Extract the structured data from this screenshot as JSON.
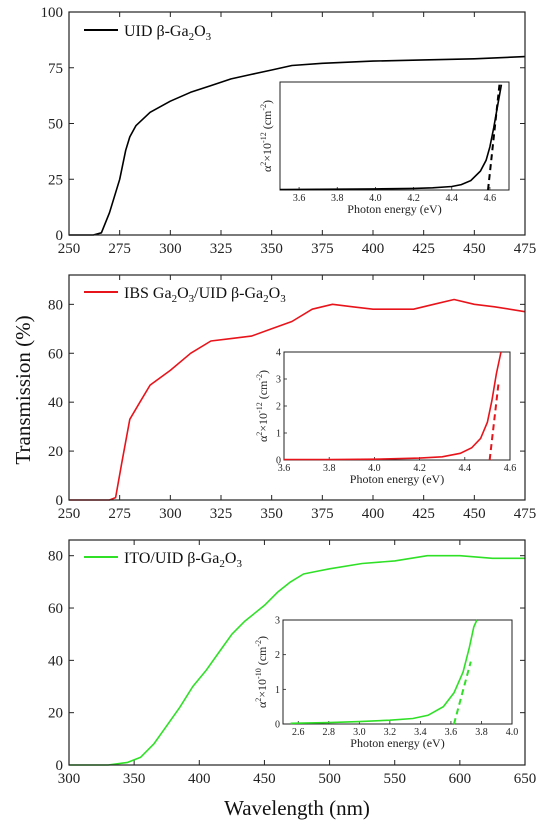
{
  "axis_titles": {
    "y": "Transmission (%)",
    "x": "Wavelength (nm)"
  },
  "chart_data": [
    {
      "type": "line",
      "series": [
        {
          "name": "UID β-Ga2O3",
          "color": "#000000",
          "x": [
            250,
            262,
            266,
            270,
            275,
            278,
            280,
            283,
            290,
            300,
            310,
            320,
            330,
            340,
            350,
            360,
            375,
            400,
            425,
            450,
            475
          ],
          "y": [
            0,
            0,
            1,
            10,
            25,
            38,
            44,
            49,
            55,
            60,
            64,
            67,
            70,
            72,
            74,
            76,
            77,
            78,
            78.5,
            79,
            80
          ]
        }
      ],
      "legend": {
        "main": "UID β-Ga",
        "sub": "2",
        "mid": "O",
        "sub2": "3"
      },
      "x_ticks": [
        250,
        275,
        300,
        325,
        350,
        375,
        400,
        425,
        450,
        475
      ],
      "y_ticks": [
        0,
        25,
        50,
        75,
        100
      ],
      "xlim": [
        250,
        475
      ],
      "ylim": [
        0,
        100
      ],
      "inset": {
        "type": "line",
        "x": [
          3.5,
          3.8,
          4.0,
          4.2,
          4.3,
          4.4,
          4.45,
          4.5,
          4.55,
          4.58,
          4.6,
          4.62,
          4.64,
          4.66
        ],
        "y": [
          0.02,
          0.03,
          0.04,
          0.06,
          0.08,
          0.13,
          0.2,
          0.35,
          0.7,
          1.1,
          1.6,
          2.3,
          3.1,
          3.9
        ],
        "fit": {
          "x": [
            4.59,
            4.65
          ],
          "y": [
            0,
            3.9
          ]
        },
        "xlabel": "Photon energy (eV)",
        "ylabel": {
          "a": "α",
          "s1": "2",
          "b": "×10",
          "s2": "-12",
          "c": " (cm",
          "s3": "-2",
          "d": ")"
        },
        "x_ticks": [
          "3.6",
          "3.8",
          "4.0",
          "4.2",
          "4.4",
          "4.6"
        ],
        "xlim": [
          3.5,
          4.7
        ],
        "ylim": [
          0,
          4
        ],
        "y_ticks": []
      }
    },
    {
      "type": "line",
      "series": [
        {
          "name": "IBS Ga2O3/UID β-Ga2O3",
          "color": "#e8141b",
          "x": [
            250,
            270,
            273,
            276,
            280,
            285,
            290,
            300,
            310,
            320,
            330,
            340,
            350,
            360,
            370,
            380,
            390,
            400,
            410,
            420,
            430,
            440,
            450,
            460,
            475
          ],
          "y": [
            0,
            0,
            1,
            15,
            33,
            40,
            47,
            53,
            60,
            65,
            66,
            67,
            70,
            73,
            78,
            80,
            79,
            78,
            78,
            78,
            80,
            82,
            80,
            79,
            77
          ]
        }
      ],
      "legend": {
        "main": "IBS Ga",
        "sub": "2",
        "mid": "O",
        "sub2": "3",
        "rest": "/UID β-Ga",
        "sub3": "2",
        "mid2": "O",
        "sub4": "3"
      },
      "x_ticks": [
        250,
        275,
        300,
        325,
        350,
        375,
        400,
        425,
        450,
        475
      ],
      "y_ticks": [
        0,
        20,
        40,
        60,
        80
      ],
      "xlim": [
        250,
        475
      ],
      "ylim": [
        0,
        92
      ],
      "inset": {
        "type": "line",
        "x": [
          3.6,
          3.8,
          4.0,
          4.2,
          4.3,
          4.38,
          4.43,
          4.47,
          4.5,
          4.52,
          4.54,
          4.56
        ],
        "y": [
          0.02,
          0.02,
          0.03,
          0.07,
          0.12,
          0.25,
          0.45,
          0.8,
          1.4,
          2.2,
          3.2,
          4.0
        ],
        "fit": {
          "x": [
            4.51,
            4.55
          ],
          "y": [
            0,
            2.9
          ]
        },
        "xlabel": "Photon energy (eV)",
        "ylabel": {
          "a": "α",
          "s1": "2",
          "b": "×10",
          "s2": "-12",
          "c": " (cm",
          "s3": "-2",
          "d": ")"
        },
        "x_ticks": [
          "3.6",
          "3.8",
          "4.0",
          "4.2",
          "4.4",
          "4.6"
        ],
        "xlim": [
          3.6,
          4.6
        ],
        "ylim": [
          0,
          4
        ],
        "y_ticks": [
          "0",
          "1",
          "2",
          "3",
          "4"
        ]
      }
    },
    {
      "type": "line",
      "series": [
        {
          "name": "ITO/UID β-Ga2O3",
          "color": "#2fe027",
          "x": [
            300,
            330,
            345,
            355,
            365,
            375,
            385,
            395,
            405,
            415,
            425,
            435,
            450,
            460,
            470,
            480,
            490,
            500,
            525,
            550,
            575,
            600,
            625,
            650
          ],
          "y": [
            0,
            0,
            1,
            3,
            8,
            15,
            22,
            30,
            36,
            43,
            50,
            55,
            61,
            66,
            70,
            73,
            74,
            75,
            77,
            78,
            80,
            80,
            79,
            79
          ]
        }
      ],
      "legend": {
        "main": "ITO/UID β-Ga",
        "sub": "2",
        "mid": "O",
        "sub2": "3"
      },
      "x_ticks": [
        300,
        350,
        400,
        450,
        500,
        550,
        600,
        650
      ],
      "y_ticks": [
        0,
        20,
        40,
        60,
        80
      ],
      "xlim": [
        300,
        650
      ],
      "ylim": [
        0,
        86
      ],
      "inset": {
        "type": "line",
        "x": [
          2.55,
          2.8,
          3.0,
          3.2,
          3.35,
          3.45,
          3.55,
          3.62,
          3.68,
          3.72,
          3.75,
          3.77
        ],
        "y": [
          0.02,
          0.04,
          0.07,
          0.11,
          0.16,
          0.25,
          0.5,
          0.9,
          1.5,
          2.2,
          2.8,
          3.0
        ],
        "fit": {
          "x": [
            3.62,
            3.73
          ],
          "y": [
            0,
            1.8
          ]
        },
        "xlabel": "Photon energy (eV)",
        "ylabel": {
          "a": "α",
          "s1": "2",
          "b": "×10",
          "s2": "-10",
          "c": " (cm",
          "s3": "-2",
          "d": ")"
        },
        "x_ticks": [
          "2.6",
          "2.8",
          "3.0",
          "3.2",
          "3.4",
          "3.6",
          "3.8",
          "4.0"
        ],
        "xlim": [
          2.5,
          4.0
        ],
        "ylim": [
          0,
          3
        ],
        "y_ticks": [
          "0",
          "1",
          "2",
          "3"
        ]
      }
    }
  ]
}
